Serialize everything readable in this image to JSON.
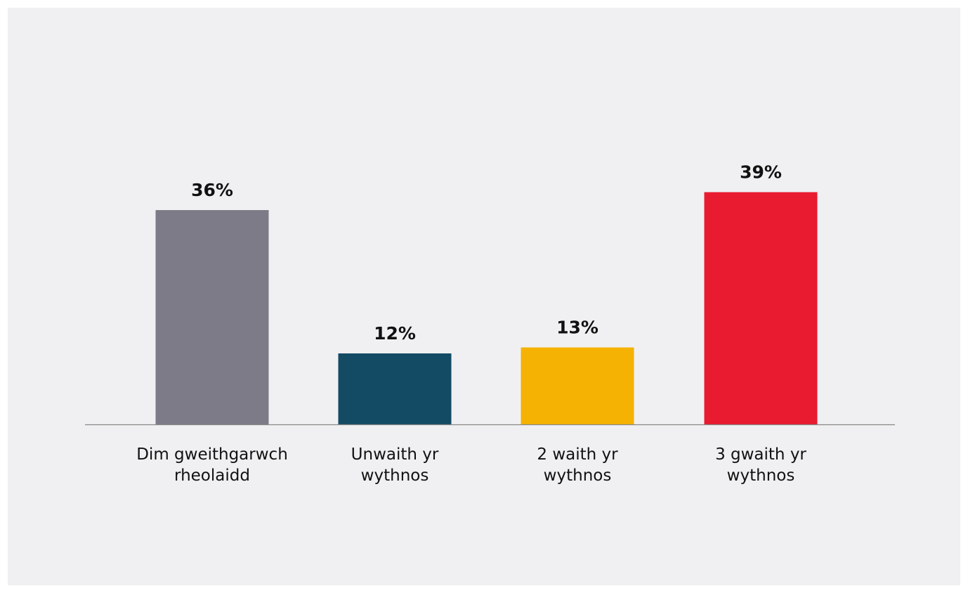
{
  "chart_data": {
    "type": "bar",
    "categories": [
      [
        "Dim gweithgarwch",
        "rheolaidd"
      ],
      [
        "Unwaith yr",
        "wythnos"
      ],
      [
        "2 waith yr",
        "wythnos"
      ],
      [
        "3 gwaith yr",
        "wythnos"
      ]
    ],
    "values": [
      36,
      12,
      13,
      39
    ],
    "value_labels": [
      "36%",
      "12%",
      "13%",
      "39%"
    ],
    "colors": [
      "#7e7b88",
      "#134a64",
      "#f5b202",
      "#e81b30"
    ],
    "title": "",
    "xlabel": "",
    "ylabel": "",
    "ylim": [
      0,
      42
    ],
    "grid": false,
    "legend": "none",
    "baseline_color": "#888888",
    "background": "#f0f0f2"
  }
}
